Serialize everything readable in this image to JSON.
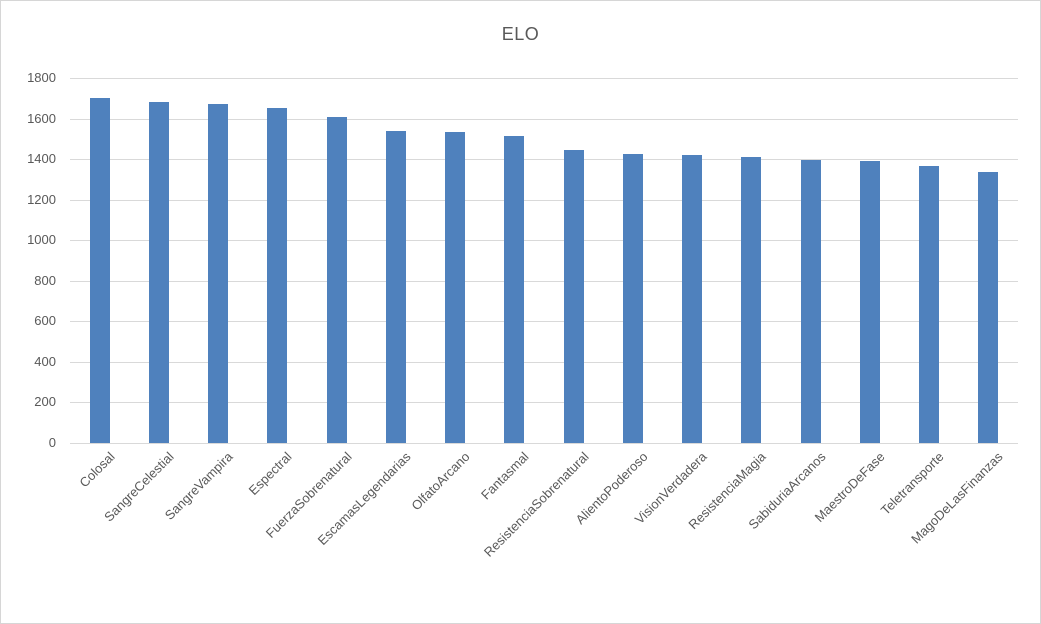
{
  "chart": {
    "title": "ELO"
  },
  "colors": {
    "bar_fill": "#4f81bd",
    "gridline": "#d9d9d9",
    "axis_text": "#595959",
    "title_text": "#595959",
    "frame_border": "#d6d6d6",
    "background": "#ffffff"
  },
  "chart_data": {
    "type": "bar",
    "title": "ELO",
    "categories": [
      "Colosal",
      "SangreCelestial",
      "SangreVampira",
      "Espectral",
      "FuerzaSobrenatural",
      "EscamasLegendarias",
      "OlfatoArcano",
      "Fantasmal",
      "ResistenciaSobrenatural",
      "AlientoPoderoso",
      "VisionVerdadera",
      "ResistenciaMagia",
      "SabiduriaArcanos",
      "MaestroDeFase",
      "Teletransporte",
      "MagoDeLasFinanzas"
    ],
    "values": [
      1700,
      1680,
      1670,
      1650,
      1610,
      1540,
      1535,
      1515,
      1445,
      1425,
      1420,
      1410,
      1395,
      1390,
      1365,
      1335
    ],
    "xlabel": "",
    "ylabel": "",
    "ylim": [
      0,
      1800
    ],
    "yticks": [
      0,
      200,
      400,
      600,
      800,
      1000,
      1200,
      1400,
      1600,
      1800
    ],
    "grid": true,
    "legend": false,
    "bar_color": "#4f81bd",
    "xtick_rotation_deg": 45
  }
}
